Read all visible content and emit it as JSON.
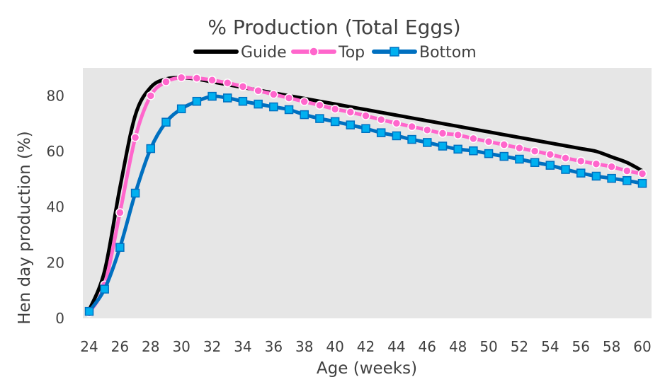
{
  "chart_data": {
    "type": "line",
    "title": "% Production (Total Eggs)",
    "xlabel": "Age (weeks)",
    "ylabel": "Hen day production (%)",
    "xlim": [
      24,
      60
    ],
    "ylim": [
      0,
      90
    ],
    "x_ticks": [
      24,
      26,
      28,
      30,
      32,
      34,
      36,
      38,
      40,
      42,
      44,
      46,
      48,
      50,
      52,
      54,
      56,
      58,
      60
    ],
    "y_ticks": [
      0,
      20,
      40,
      60,
      80
    ],
    "legend_position": "top",
    "grid": false,
    "plot_background": "#e6e6e6",
    "x": [
      24,
      25,
      26,
      27,
      28,
      29,
      30,
      31,
      32,
      33,
      34,
      35,
      36,
      37,
      38,
      39,
      40,
      41,
      42,
      43,
      44,
      45,
      46,
      47,
      48,
      49,
      50,
      51,
      52,
      53,
      54,
      55,
      56,
      57,
      58,
      59,
      60
    ],
    "series": [
      {
        "name": "Guide",
        "color": "#000000",
        "marker": "none",
        "values": [
          3,
          17,
          47,
          73,
          83,
          86,
          86.5,
          86,
          85,
          84,
          83,
          82,
          81,
          80,
          79,
          78,
          77,
          76,
          75,
          74,
          73,
          72,
          71,
          70,
          69,
          68,
          67,
          66,
          65,
          64,
          63,
          62,
          61,
          60,
          58,
          56,
          53
        ]
      },
      {
        "name": "Top",
        "color": "#ff66cc",
        "marker": "circle",
        "values": [
          2,
          12,
          38,
          65,
          80,
          85,
          86.5,
          86.3,
          85.6,
          84.6,
          83.3,
          81.8,
          80.5,
          79.2,
          77.9,
          76.6,
          75.2,
          74.1,
          72.8,
          71.4,
          70.1,
          68.9,
          67.7,
          66.5,
          65.9,
          64.6,
          63.5,
          62.4,
          61.2,
          60.1,
          58.9,
          57.6,
          56.5,
          55.5,
          54.5,
          53.0,
          52.0
        ]
      },
      {
        "name": "Bottom",
        "color": "#0070c0",
        "marker": "square",
        "markerFill": "#00b0f0",
        "values": [
          2.5,
          10.5,
          25.5,
          45,
          61,
          70.5,
          75.3,
          78,
          79.8,
          79.2,
          78,
          77,
          76,
          75,
          73.2,
          71.8,
          70.7,
          69.5,
          68.2,
          66.7,
          65.6,
          64.3,
          63.2,
          61.9,
          60.8,
          60.2,
          59.2,
          58.2,
          57.2,
          56,
          55,
          53.5,
          52.2,
          51.1,
          50.3,
          49.5,
          48.5
        ]
      }
    ]
  }
}
